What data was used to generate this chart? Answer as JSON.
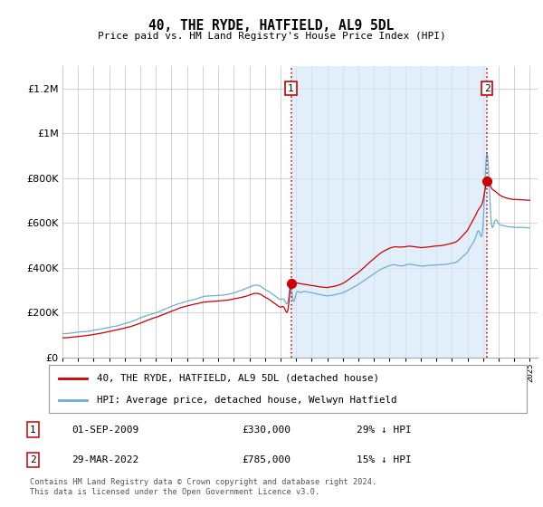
{
  "title": "40, THE RYDE, HATFIELD, AL9 5DL",
  "subtitle": "Price paid vs. HM Land Registry's House Price Index (HPI)",
  "hpi_label": "HPI: Average price, detached house, Welwyn Hatfield",
  "property_label": "40, THE RYDE, HATFIELD, AL9 5DL (detached house)",
  "sale1_date": "01-SEP-2009",
  "sale1_price": 330000,
  "sale1_note": "29% ↓ HPI",
  "sale2_date": "29-MAR-2022",
  "sale2_price": 785000,
  "sale2_note": "15% ↓ HPI",
  "footer": "Contains HM Land Registry data © Crown copyright and database right 2024.\nThis data is licensed under the Open Government Licence v3.0.",
  "hpi_color": "#6baed6",
  "hpi_fill_color": "#d6e9f8",
  "property_color": "#cc0000",
  "vline_color": "#cc0000",
  "ylim": [
    0,
    1300000
  ],
  "yticks": [
    0,
    200000,
    400000,
    600000,
    800000,
    1000000,
    1200000
  ],
  "sale1_x": 2009.67,
  "sale2_x": 2022.25,
  "xmin": 1995,
  "xmax": 2025.5
}
